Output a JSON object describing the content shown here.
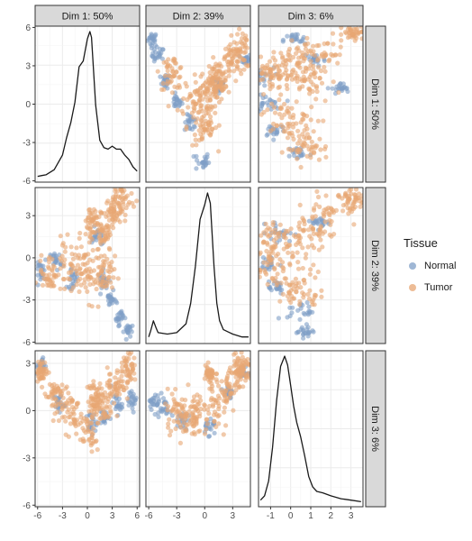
{
  "chart_data": {
    "type": "scatter-matrix",
    "title": "",
    "facets": [
      "Dim 1: 50%",
      "Dim 2: 39%",
      "Dim 3: 6%"
    ],
    "legend": {
      "title": "Tissue",
      "placement": "right",
      "entries": [
        {
          "name": "Normal",
          "color": "#7f9fc7"
        },
        {
          "name": "Tumor",
          "color": "#e7a673"
        }
      ]
    },
    "grid": true,
    "axes": {
      "x": [
        {
          "ticks": [
            -6,
            -3,
            0,
            3,
            6
          ],
          "range": [
            -6.3,
            6.3
          ]
        },
        {
          "ticks": [
            -6,
            -3,
            0,
            3
          ],
          "range": [
            -6.3,
            4.9
          ]
        },
        {
          "ticks": [
            -1,
            0,
            1,
            2,
            3
          ],
          "range": [
            -1.6,
            3.6
          ]
        }
      ],
      "y": [
        {
          "ticks": [
            -6,
            -3,
            0,
            3,
            6
          ],
          "range": [
            -6.1,
            6.1
          ]
        },
        {
          "ticks": [
            -6,
            -3,
            0,
            3
          ],
          "range": [
            -6.1,
            5.0
          ]
        },
        {
          "ticks": [
            -6,
            -3,
            0,
            3
          ],
          "range": [
            -6.1,
            3.8
          ]
        }
      ]
    },
    "densities": [
      {
        "dim": "Dim 1",
        "x": [
          -6,
          -5.5,
          -5,
          -4,
          -3,
          -2.5,
          -2,
          -1.5,
          -1,
          -0.5,
          0,
          0.3,
          0.5,
          1,
          1.5,
          2,
          2.5,
          3,
          3.5,
          4,
          4.5,
          5,
          5.5,
          6
        ],
        "density": [
          0.015,
          0.02,
          0.025,
          0.06,
          0.16,
          0.28,
          0.38,
          0.52,
          0.76,
          0.8,
          0.95,
          1.0,
          0.96,
          0.5,
          0.26,
          0.21,
          0.2,
          0.22,
          0.2,
          0.2,
          0.16,
          0.13,
          0.08,
          0.05
        ]
      },
      {
        "dim": "Dim 2",
        "x": [
          -6,
          -5.8,
          -5.5,
          -5.2,
          -5,
          -4,
          -3,
          -2,
          -1.5,
          -1,
          -0.5,
          0,
          0.3,
          0.6,
          1,
          1.3,
          1.6,
          2,
          3,
          4,
          4.7
        ],
        "density": [
          0.02,
          0.06,
          0.13,
          0.08,
          0.05,
          0.04,
          0.05,
          0.11,
          0.25,
          0.5,
          0.82,
          0.92,
          1.0,
          0.93,
          0.5,
          0.25,
          0.13,
          0.07,
          0.04,
          0.02,
          0.02
        ]
      },
      {
        "dim": "Dim 3",
        "x": [
          -1.5,
          -1.3,
          -1.1,
          -0.9,
          -0.7,
          -0.5,
          -0.3,
          -0.15,
          0,
          0.15,
          0.3,
          0.5,
          0.7,
          0.9,
          1.1,
          1.3,
          1.6,
          2,
          2.5,
          3,
          3.5
        ],
        "density": [
          0.02,
          0.05,
          0.15,
          0.38,
          0.7,
          0.93,
          1.0,
          0.94,
          0.8,
          0.66,
          0.55,
          0.45,
          0.32,
          0.18,
          0.11,
          0.08,
          0.07,
          0.05,
          0.03,
          0.02,
          0.01
        ]
      }
    ],
    "scatter_pairs": [
      {
        "x_dim": "Dim 2",
        "y_dim": "Dim 1",
        "tumor": [
          [
            -1,
            0.2,
            1.7
          ],
          [
            1.5,
            2,
            1.2
          ],
          [
            4.2,
            4.4,
            1.4
          ],
          [
            0,
            -2,
            1.2
          ],
          [
            1.2,
            1.5,
            1.2
          ],
          [
            3,
            3.5,
            1.0
          ],
          [
            0.3,
            0.8,
            1.5
          ],
          [
            -3.5,
            2.5,
            1.2
          ]
        ],
        "normal": [
          [
            -5.6,
            5.1,
            0.5
          ],
          [
            -5,
            3.8,
            0.6
          ],
          [
            -4.2,
            1.8,
            0.5
          ],
          [
            -3,
            0.2,
            0.5
          ],
          [
            -1.5,
            -1.5,
            0.6
          ],
          [
            -0.3,
            -4.5,
            0.7
          ],
          [
            1.5,
            1.5,
            0.7
          ],
          [
            4.5,
            3.5,
            0.4
          ]
        ]
      },
      {
        "x_dim": "Dim 3",
        "y_dim": "Dim 1",
        "tumor": [
          [
            -0.5,
            0.8,
            2.2
          ],
          [
            -0.2,
            -1.6,
            1.4
          ],
          [
            0.5,
            2,
            1.0
          ],
          [
            1.5,
            4.0,
            1.3
          ],
          [
            3.2,
            5.5,
            0.6
          ],
          [
            0.2,
            3.4,
            1.0
          ],
          [
            -1.1,
            2.5,
            1.0
          ],
          [
            0.8,
            -3.5,
            1.0
          ]
        ],
        "normal": [
          [
            -1.2,
            0,
            0.6
          ],
          [
            -1.5,
            2.2,
            0.6
          ],
          [
            0.2,
            5,
            0.5
          ],
          [
            1.2,
            3.5,
            0.5
          ],
          [
            0.4,
            -3.8,
            0.5
          ],
          [
            -0.8,
            -2,
            0.5
          ],
          [
            2.5,
            1.2,
            0.4
          ]
        ]
      },
      {
        "x_dim": "Dim 1",
        "y_dim": "Dim 2",
        "tumor": [
          [
            0.2,
            -1,
            1.8
          ],
          [
            2,
            1.5,
            1.2
          ],
          [
            4.2,
            4.2,
            1.4
          ],
          [
            -2,
            -0.5,
            1.5
          ],
          [
            -4.5,
            -1,
            1.2
          ],
          [
            0.5,
            2.6,
            1.0
          ],
          [
            3,
            3.2,
            1.0
          ],
          [
            2,
            -1.2,
            1.2
          ]
        ],
        "normal": [
          [
            -5.5,
            -1,
            0.6
          ],
          [
            -3.8,
            -0.2,
            0.6
          ],
          [
            -1.8,
            -1.5,
            0.6
          ],
          [
            2,
            -1.6,
            0.6
          ],
          [
            5,
            -5.2,
            0.5
          ],
          [
            3.8,
            -4.2,
            0.5
          ],
          [
            1.2,
            1.5,
            0.6
          ],
          [
            2.8,
            -3,
            0.5
          ]
        ]
      },
      {
        "x_dim": "Dim 3",
        "y_dim": "Dim 2",
        "tumor": [
          [
            -0.3,
            0.5,
            2.0
          ],
          [
            -0.8,
            -1,
            1.5
          ],
          [
            1,
            1.8,
            1.2
          ],
          [
            2,
            3.5,
            1.2
          ],
          [
            3,
            4.2,
            0.8
          ],
          [
            -1.2,
            1.5,
            1.0
          ],
          [
            0.5,
            -2.5,
            1.0
          ]
        ],
        "normal": [
          [
            -1.2,
            -0.5,
            0.6
          ],
          [
            -0.5,
            1.8,
            0.6
          ],
          [
            0.5,
            -3.8,
            0.6
          ],
          [
            0.7,
            -5.2,
            0.4
          ],
          [
            1.5,
            2.5,
            0.4
          ],
          [
            -0.8,
            -2,
            0.5
          ]
        ]
      },
      {
        "x_dim": "Dim 1",
        "y_dim": "Dim 3",
        "tumor": [
          [
            -4,
            1.0,
            1.0
          ],
          [
            -2,
            0,
            1.3
          ],
          [
            0,
            -1.2,
            1.4
          ],
          [
            2,
            0.2,
            1.2
          ],
          [
            3.5,
            1.7,
            1.0
          ],
          [
            5,
            2.7,
            0.8
          ],
          [
            -5.5,
            2.5,
            0.6
          ],
          [
            1,
            0.8,
            0.9
          ]
        ],
        "normal": [
          [
            -5.5,
            2.8,
            0.5
          ],
          [
            -3.5,
            0.5,
            0.6
          ],
          [
            0.5,
            -0.8,
            0.6
          ],
          [
            3.5,
            0.4,
            0.6
          ],
          [
            5.5,
            0.6,
            0.5
          ],
          [
            2,
            -0.4,
            0.5
          ]
        ]
      },
      {
        "x_dim": "Dim 2",
        "y_dim": "Dim 3",
        "tumor": [
          [
            -3,
            0,
            1.2
          ],
          [
            0,
            -0.3,
            1.6
          ],
          [
            2,
            1.0,
            1.3
          ],
          [
            3.5,
            2.2,
            1.0
          ],
          [
            4.2,
            2.6,
            0.8
          ],
          [
            0.5,
            2.2,
            0.6
          ],
          [
            -1.5,
            -0.5,
            1.0
          ]
        ],
        "normal": [
          [
            -5.5,
            0.6,
            0.5
          ],
          [
            -4.5,
            0.3,
            0.6
          ],
          [
            -2.5,
            -0.6,
            0.6
          ],
          [
            0.5,
            -1.0,
            0.6
          ],
          [
            2.5,
            1.2,
            0.5
          ],
          [
            4.2,
            2.4,
            0.4
          ]
        ]
      }
    ]
  }
}
